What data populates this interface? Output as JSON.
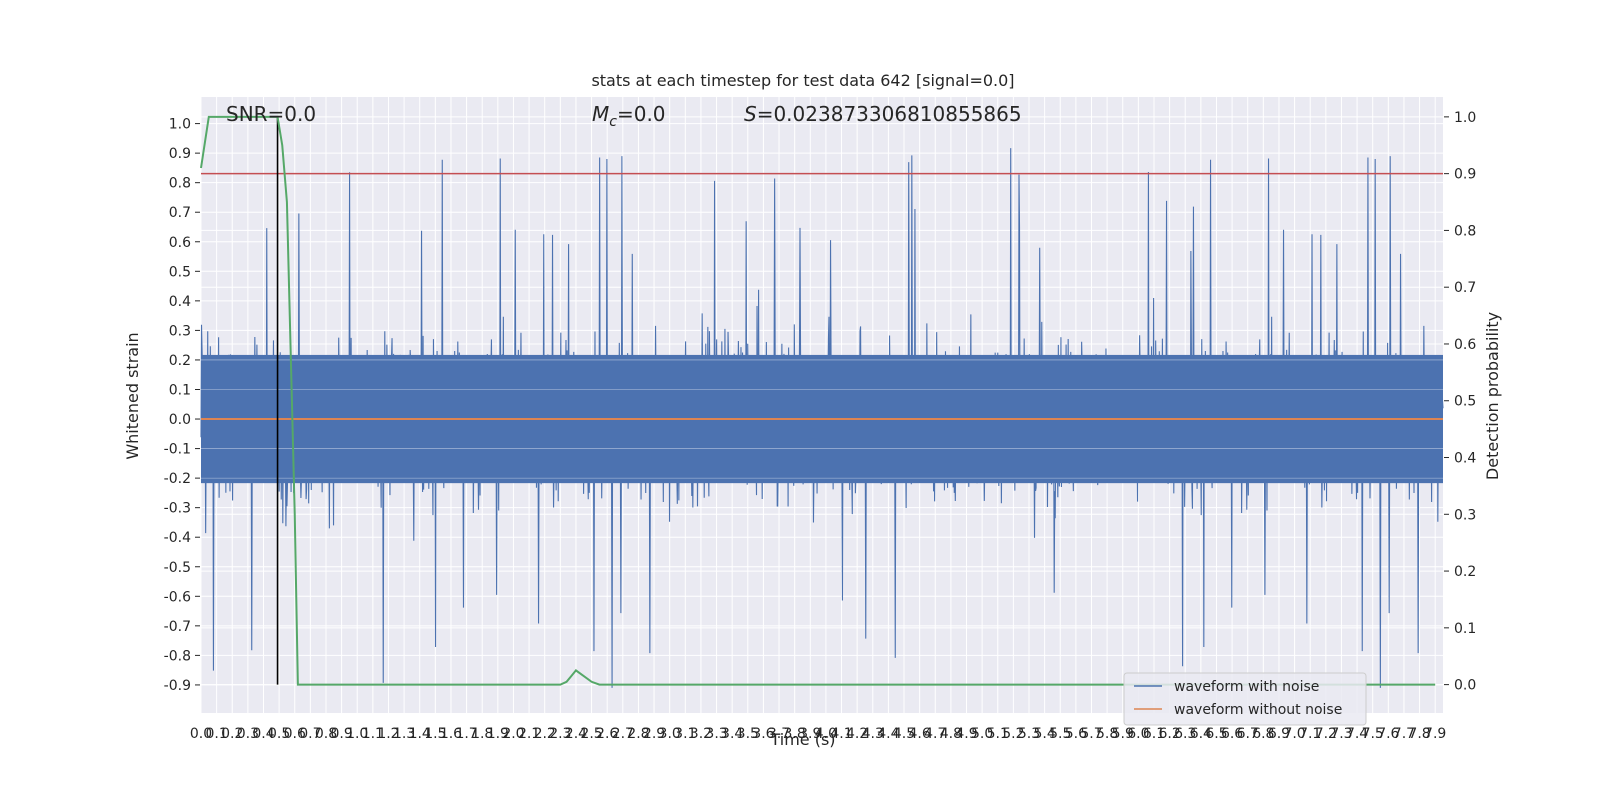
{
  "chart_data": {
    "type": "line",
    "title": "stats at each timestep for test data 642 [signal=0.0]",
    "xlabel": "Time (s)",
    "ylabel": "Whitened strain",
    "y2label": "Detection probability",
    "xlim": [
      0.0,
      7.95
    ],
    "ylim": [
      -0.995,
      1.09
    ],
    "y2lim": [
      -0.05,
      1.035
    ],
    "x_ticks": [
      "0.0",
      "0.1",
      "0.2",
      "0.3",
      "0.4",
      "0.5",
      "0.6",
      "0.7",
      "0.8",
      "0.9",
      "1.0",
      "1.1",
      "1.2",
      "1.3",
      "1.4",
      "1.5",
      "1.6",
      "1.7",
      "1.8",
      "1.9",
      "2.0",
      "2.1",
      "2.2",
      "2.3",
      "2.4",
      "2.5",
      "2.6",
      "2.7",
      "2.8",
      "2.9",
      "3.0",
      "3.1",
      "3.2",
      "3.3",
      "3.4",
      "3.5",
      "3.6",
      "3.7",
      "3.8",
      "3.9",
      "4.0",
      "4.1",
      "4.2",
      "4.3",
      "4.4",
      "4.5",
      "4.6",
      "4.7",
      "4.8",
      "4.9",
      "5.0",
      "5.1",
      "5.2",
      "5.3",
      "5.4",
      "5.5",
      "5.6",
      "5.7",
      "5.8",
      "5.9",
      "6.0",
      "6.1",
      "6.2",
      "6.3",
      "6.4",
      "6.5",
      "6.6",
      "6.7",
      "6.8",
      "6.9",
      "7.0",
      "7.1",
      "7.2",
      "7.3",
      "7.4",
      "7.5",
      "7.6",
      "7.7",
      "7.8",
      "7.9"
    ],
    "y_ticks": [
      "-0.9",
      "-0.8",
      "-0.7",
      "-0.6",
      "-0.5",
      "-0.4",
      "-0.3",
      "-0.2",
      "-0.1",
      "0.0",
      "0.1",
      "0.2",
      "0.3",
      "0.4",
      "0.5",
      "0.6",
      "0.7",
      "0.8",
      "0.9",
      "1.0"
    ],
    "y2_ticks": [
      "0.0",
      "0.1",
      "0.2",
      "0.3",
      "0.4",
      "0.5",
      "0.6",
      "0.7",
      "0.8",
      "0.9",
      "1.0"
    ],
    "grid": true,
    "legend_position": "lower-right",
    "annotations": {
      "snr": "SNR=0.0",
      "mc_symbol": "M",
      "mc_sub": "c",
      "mc_value": "=0.0",
      "s_symbol": "S",
      "s_value": "=0.023873306810855865"
    },
    "series": [
      {
        "name": "waveform with noise",
        "color": "#4c72b0",
        "kind": "noise",
        "amplitude_typical": 0.35,
        "amplitude_max": 1.0
      },
      {
        "name": "waveform without noise",
        "color": "#dd8452",
        "kind": "flat",
        "value": 0.0
      }
    ],
    "threshold": {
      "value": 0.9,
      "axis": "right",
      "color": "#c44e52"
    },
    "marker_line": {
      "x": 0.49,
      "color": "#000000"
    },
    "detection_probability": {
      "color": "#55a868",
      "x": [
        0.0,
        0.05,
        0.1,
        0.2,
        0.3,
        0.4,
        0.49,
        0.52,
        0.55,
        0.6,
        0.62,
        0.7,
        1.0,
        2.0,
        2.3,
        2.34,
        2.37,
        2.4,
        2.45,
        2.5,
        2.55,
        3.0,
        5.0,
        7.9
      ],
      "y": [
        0.91,
        1.0,
        1.0,
        1.0,
        1.0,
        1.0,
        1.0,
        0.95,
        0.85,
        0.3,
        0.0,
        0.0,
        0.0,
        0.0,
        0.0,
        0.005,
        0.015,
        0.025,
        0.015,
        0.005,
        0.0,
        0.0,
        0.0,
        0.0
      ]
    }
  }
}
